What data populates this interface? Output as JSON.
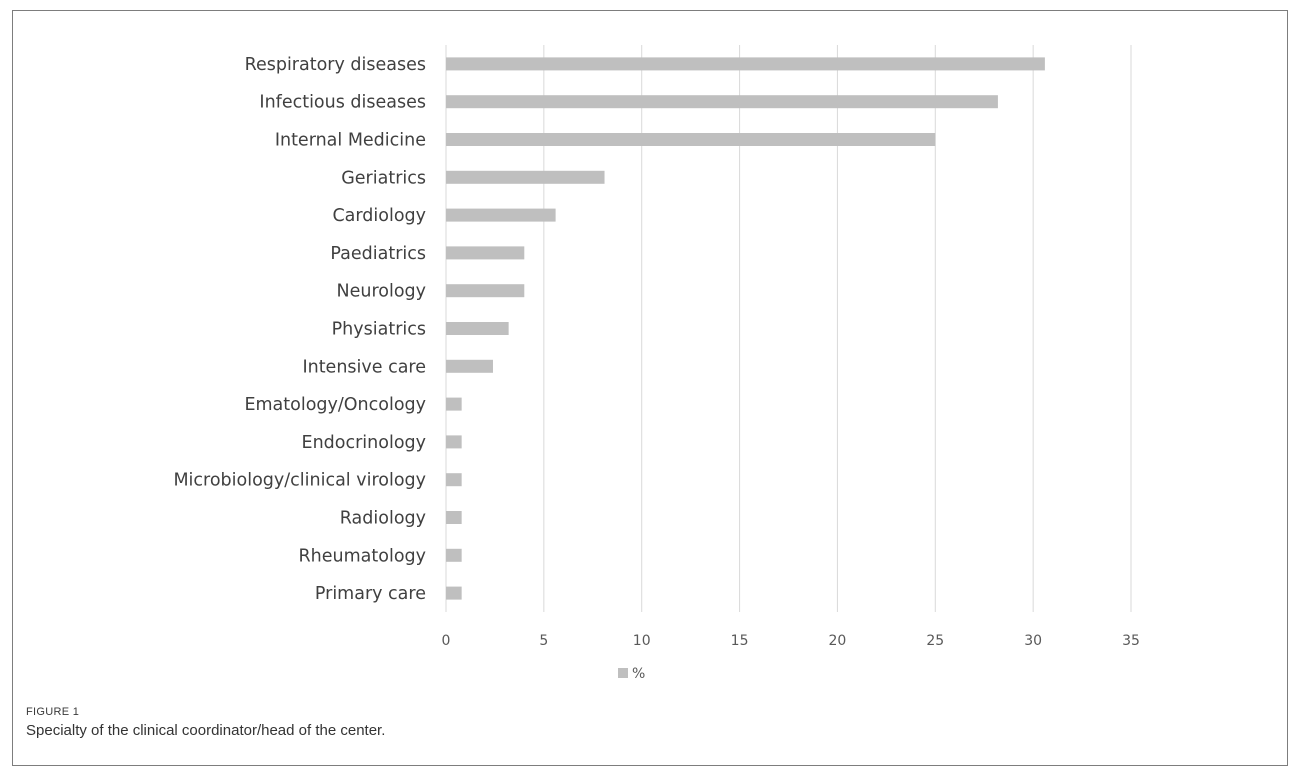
{
  "chart_data": {
    "type": "bar",
    "orientation": "horizontal",
    "categories": [
      "Respiratory diseases",
      "Infectious diseases",
      "Internal Medicine",
      "Geriatrics",
      "Cardiology",
      "Paediatrics",
      "Neurology",
      "Physiatrics",
      "Intensive care",
      "Ematology/Oncology",
      "Endocrinology",
      "Microbiology/clinical virology",
      "Radiology",
      "Rheumatology",
      "Primary care"
    ],
    "series": [
      {
        "name": "%",
        "values": [
          30.6,
          28.2,
          25.0,
          8.1,
          5.6,
          4.0,
          4.0,
          3.2,
          2.4,
          0.8,
          0.8,
          0.8,
          0.8,
          0.8,
          0.8
        ]
      }
    ],
    "xlim": [
      0,
      35
    ],
    "xticks": [
      "0",
      "5",
      "10",
      "15",
      "20",
      "25",
      "30",
      "35"
    ],
    "grid": "vertical",
    "legend_position": "bottom",
    "bar_color": "#bfbfbf",
    "grid_color": "#d9d9d9"
  },
  "caption": {
    "label": "FIGURE 1",
    "text": "Specialty of the clinical coordinator/head of the center."
  }
}
